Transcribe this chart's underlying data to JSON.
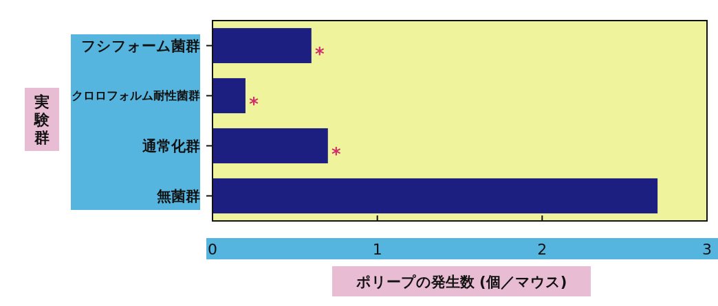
{
  "chart_data": {
    "type": "bar",
    "orientation": "horizontal",
    "categories": [
      "フシフォーム菌群",
      "クロロフォルム耐性菌群",
      "通常化群",
      "無菌群"
    ],
    "values": [
      0.6,
      0.2,
      0.7,
      2.7
    ],
    "color": "#1c1f80",
    "xlim": [
      0,
      3
    ],
    "xticks": [
      0,
      1,
      2,
      3
    ],
    "xlabel": "ポリープの発生数 (個／マウス)",
    "ylabel": "実験群",
    "grid": false,
    "annotations": [
      {
        "text": "*",
        "x": 0.6,
        "y": "フシフォーム菌群"
      },
      {
        "text": "*",
        "x": 0.2,
        "y": "クロロフォルム耐性菌群"
      },
      {
        "text": "*",
        "x": 0.7,
        "y": "通常化群"
      }
    ]
  }
}
